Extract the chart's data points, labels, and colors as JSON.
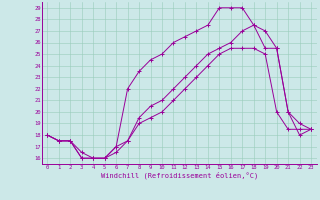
{
  "xlabel": "Windchill (Refroidissement éolien,°C)",
  "xlim": [
    -0.5,
    23.5
  ],
  "ylim": [
    15.5,
    29.5
  ],
  "yticks": [
    16,
    17,
    18,
    19,
    20,
    21,
    22,
    23,
    24,
    25,
    26,
    27,
    28,
    29
  ],
  "xticks": [
    0,
    1,
    2,
    3,
    4,
    5,
    6,
    7,
    8,
    9,
    10,
    11,
    12,
    13,
    14,
    15,
    16,
    17,
    18,
    19,
    20,
    21,
    22,
    23
  ],
  "bg_color": "#cce8e8",
  "grid_color": "#99ccbb",
  "line_color": "#990099",
  "line1_x": [
    0,
    1,
    2,
    3,
    4,
    5,
    6,
    7,
    8,
    9,
    10,
    11,
    12,
    13,
    14,
    15,
    16,
    17,
    18,
    19,
    20,
    21,
    22,
    23
  ],
  "line1_y": [
    18,
    17.5,
    17.5,
    16,
    16,
    16,
    17,
    17.5,
    19,
    19.5,
    20,
    21,
    22,
    23,
    24,
    25,
    25.5,
    25.5,
    25.5,
    25,
    20,
    18.5,
    18.5,
    18.5
  ],
  "line2_x": [
    0,
    1,
    2,
    3,
    4,
    5,
    6,
    7,
    8,
    9,
    10,
    11,
    12,
    13,
    14,
    15,
    16,
    17,
    18,
    19,
    20,
    21,
    22,
    23
  ],
  "line2_y": [
    18,
    17.5,
    17.5,
    16,
    16,
    16,
    17,
    22,
    23.5,
    24.5,
    25,
    26,
    26.5,
    27,
    27.5,
    29,
    29,
    29,
    27.5,
    27,
    25.5,
    20,
    18,
    18.5
  ],
  "line3_x": [
    0,
    1,
    2,
    3,
    4,
    5,
    6,
    7,
    8,
    9,
    10,
    11,
    12,
    13,
    14,
    15,
    16,
    17,
    18,
    19,
    20,
    21,
    22,
    23
  ],
  "line3_y": [
    18,
    17.5,
    17.5,
    16.5,
    16,
    16,
    16.5,
    17.5,
    19.5,
    20.5,
    21,
    22,
    23,
    24,
    25,
    25.5,
    26,
    27,
    27.5,
    25.5,
    25.5,
    20,
    19,
    18.5
  ]
}
